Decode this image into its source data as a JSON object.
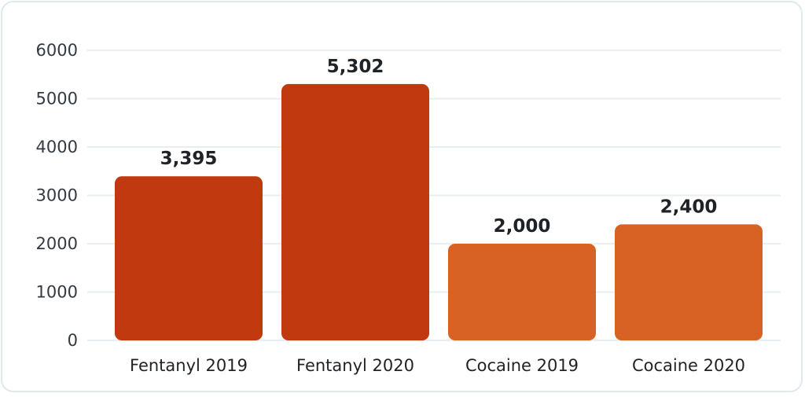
{
  "chart_data": {
    "type": "bar",
    "categories": [
      "Fentanyl 2019",
      "Fentanyl 2020",
      "Cocaine 2019",
      "Cocaine 2020"
    ],
    "values": [
      3395,
      5302,
      2000,
      2400
    ],
    "value_labels": [
      "3,395",
      "5,302",
      "2,000",
      "2,400"
    ],
    "colors": [
      "#c0390f",
      "#c0390f",
      "#d86224",
      "#d86224"
    ],
    "title": "",
    "xlabel": "",
    "ylabel": "",
    "ylim": [
      0,
      6000
    ],
    "yticks": [
      0,
      1000,
      2000,
      3000,
      4000,
      5000,
      6000
    ],
    "grid": true,
    "legend": "none"
  }
}
